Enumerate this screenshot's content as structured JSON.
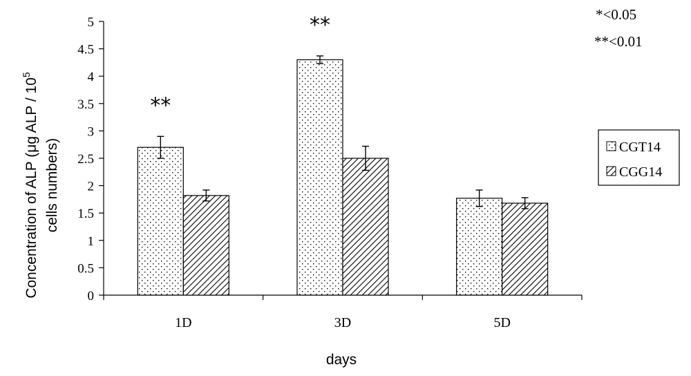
{
  "chart_data": {
    "type": "bar",
    "categories": [
      "1D",
      "3D",
      "5D"
    ],
    "series": [
      {
        "name": "CGT14",
        "pattern": "dots",
        "values": [
          2.7,
          4.3,
          1.77
        ],
        "errors": [
          0.2,
          0.07,
          0.15
        ]
      },
      {
        "name": "CGG14",
        "pattern": "diagonal",
        "values": [
          1.82,
          2.5,
          1.68
        ],
        "errors": [
          0.1,
          0.22,
          0.1
        ]
      }
    ],
    "xlabel": "days",
    "ylabel_line1": "Concentration of ALP (μg ALP / 10",
    "ylabel_sup": "5",
    "ylabel_line2": "cells numbers)",
    "ylim": [
      0,
      5
    ],
    "yticks": [
      0,
      0.5,
      1,
      1.5,
      2,
      2.5,
      3,
      3.5,
      4,
      4.5,
      5
    ],
    "ytick_labels": [
      "0",
      "0.5",
      "1",
      "1.5",
      "2",
      "2.5",
      "3",
      "3.5",
      "4",
      "4.5",
      "5"
    ],
    "grid": false,
    "legend_position": "right",
    "significance_marks": [
      "**",
      "**",
      ""
    ],
    "significance_key": [
      "*<0.05",
      "**<0.01"
    ],
    "colors": {
      "bar_fill": "#ffffff",
      "stroke": "#000000",
      "background": "#ffffff"
    }
  }
}
